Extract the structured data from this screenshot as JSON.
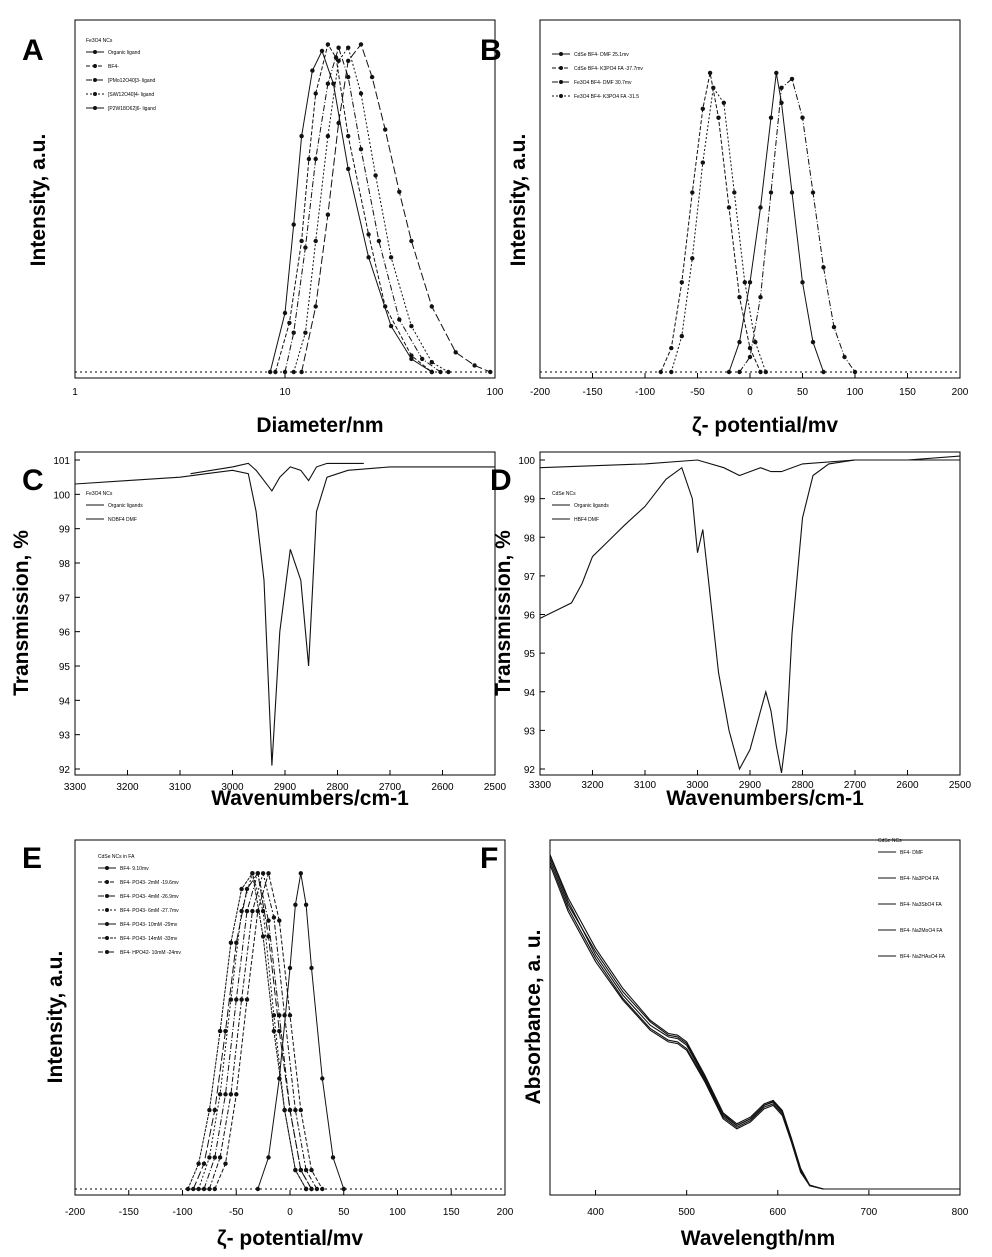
{
  "chart_data": [
    {
      "panel": "A",
      "type": "line",
      "xscale": "log",
      "xlim": [
        1,
        100
      ],
      "xticks": [
        "1",
        "10",
        "100"
      ],
      "xlabel": "Diameter/nm",
      "ylabel": "Intensity, a.u.",
      "legend_title": "Fe3O4 NCs",
      "legend": [
        "Organic ligand",
        "BF4-",
        "[PMo12O40]3- ligand",
        "[SiW12O40]4- ligand",
        "[P2W18O62]6- ligand"
      ],
      "series": [
        {
          "name": "Organic ligand",
          "x": [
            8.5,
            10,
            11,
            12,
            13.5,
            15,
            17,
            20,
            25,
            32,
            40,
            50
          ],
          "y": [
            0,
            0.18,
            0.45,
            0.72,
            0.92,
            0.98,
            0.88,
            0.62,
            0.35,
            0.14,
            0.04,
            0
          ]
        },
        {
          "name": "BF4-",
          "x": [
            9,
            10.5,
            12,
            13,
            14,
            16,
            17.5,
            20,
            25,
            30,
            40,
            50
          ],
          "y": [
            0,
            0.15,
            0.4,
            0.65,
            0.85,
            1.0,
            0.96,
            0.72,
            0.42,
            0.2,
            0.05,
            0
          ]
        },
        {
          "name": "[PMo12O40]3- ligand",
          "x": [
            10,
            11,
            12.5,
            14,
            16,
            18,
            20,
            23,
            28,
            35,
            45,
            55
          ],
          "y": [
            0,
            0.12,
            0.38,
            0.65,
            0.88,
            0.99,
            0.9,
            0.68,
            0.4,
            0.16,
            0.04,
            0
          ]
        },
        {
          "name": "[SiW12O40]4- ligand",
          "x": [
            11,
            12.5,
            14,
            16,
            18,
            20,
            23,
            27,
            32,
            40,
            50,
            60
          ],
          "y": [
            0,
            0.12,
            0.4,
            0.72,
            0.95,
            0.99,
            0.85,
            0.6,
            0.35,
            0.14,
            0.03,
            0
          ]
        },
        {
          "name": "[P2W18O62]6- ligand",
          "x": [
            12,
            14,
            16,
            18,
            20,
            23,
            26,
            30,
            35,
            40,
            50,
            65,
            80,
            95
          ],
          "y": [
            0,
            0.2,
            0.48,
            0.76,
            0.95,
            1.0,
            0.9,
            0.74,
            0.55,
            0.4,
            0.2,
            0.06,
            0.02,
            0
          ]
        }
      ]
    },
    {
      "panel": "B",
      "type": "line",
      "xlim": [
        -200,
        200
      ],
      "xticks": [
        "-200",
        "-150",
        "-100",
        "-50",
        "0",
        "50",
        "100",
        "150",
        "200"
      ],
      "xlabel": "ζ- potential/mv",
      "ylabel": "Intensity, a.u.",
      "legend": [
        "CdSe BF4- DMF 25.1mv",
        "CdSe BF4- K3PO4 FA -37.7mv",
        "Fe3O4 BF4- DMF 30.7mv",
        "Fe3O4 BF4- K3PO4 FA -31.5"
      ],
      "series": [
        {
          "name": "CdSe BF4- DMF 25.1mv",
          "x": [
            -20,
            -10,
            0,
            10,
            20,
            25,
            30,
            40,
            50,
            60,
            70
          ],
          "y": [
            0,
            0.1,
            0.3,
            0.55,
            0.85,
            1.0,
            0.9,
            0.6,
            0.3,
            0.1,
            0
          ]
        },
        {
          "name": "CdSe BF4- K3PO4 FA -37.7mv",
          "x": [
            -85,
            -75,
            -65,
            -55,
            -45,
            -38,
            -30,
            -20,
            -10,
            0,
            10
          ],
          "y": [
            0,
            0.08,
            0.3,
            0.6,
            0.88,
            1.0,
            0.85,
            0.55,
            0.25,
            0.08,
            0
          ]
        },
        {
          "name": "Fe3O4 BF4- DMF 30.7mv",
          "x": [
            -10,
            0,
            10,
            20,
            30,
            40,
            50,
            60,
            70,
            80,
            90,
            100
          ],
          "y": [
            0,
            0.05,
            0.25,
            0.6,
            0.95,
            0.98,
            0.85,
            0.6,
            0.35,
            0.15,
            0.05,
            0
          ]
        },
        {
          "name": "Fe3O4 BF4- K3PO4 FA -31.5",
          "x": [
            -75,
            -65,
            -55,
            -45,
            -35,
            -25,
            -15,
            -5,
            5,
            15
          ],
          "y": [
            0,
            0.12,
            0.38,
            0.7,
            0.95,
            0.9,
            0.6,
            0.3,
            0.1,
            0
          ]
        }
      ]
    },
    {
      "panel": "C",
      "type": "line",
      "xlim": [
        3300,
        2500
      ],
      "ylim": [
        92,
        101
      ],
      "xticks": [
        "3300",
        "3200",
        "3100",
        "3000",
        "2900",
        "2800",
        "2700",
        "2600",
        "2500"
      ],
      "yticks": [
        "92",
        "93",
        "94",
        "95",
        "96",
        "97",
        "98",
        "99",
        "100",
        "101"
      ],
      "xlabel": "Wavenumbers/cm-1",
      "ylabel": "Transmission, %",
      "legend_title": "Fe3O4 NCs",
      "legend": [
        "Organic ligands",
        "NOBF4 DMF"
      ],
      "series": [
        {
          "name": "Organic ligands",
          "x": [
            3300,
            3200,
            3100,
            3050,
            3000,
            2970,
            2955,
            2940,
            2925,
            2910,
            2890,
            2870,
            2855,
            2840,
            2820,
            2780,
            2700,
            2600,
            2500
          ],
          "y": [
            100.3,
            100.4,
            100.5,
            100.6,
            100.7,
            100.6,
            99.5,
            97.5,
            92.1,
            96.0,
            98.4,
            97.5,
            95.0,
            99.5,
            100.5,
            100.7,
            100.8,
            100.8,
            100.8
          ]
        },
        {
          "name": "NOBF4 DMF",
          "x": [
            3080,
            3000,
            2970,
            2955,
            2940,
            2925,
            2910,
            2890,
            2870,
            2855,
            2840,
            2820,
            2780,
            2750
          ],
          "y": [
            100.6,
            100.8,
            100.9,
            100.7,
            100.4,
            100.1,
            100.5,
            100.8,
            100.7,
            100.4,
            100.8,
            100.9,
            100.9,
            100.9
          ]
        }
      ]
    },
    {
      "panel": "D",
      "type": "line",
      "xlim": [
        3300,
        2500
      ],
      "ylim": [
        92,
        100
      ],
      "xticks": [
        "3300",
        "3200",
        "3100",
        "3000",
        "2900",
        "2800",
        "2700",
        "2600",
        "2500"
      ],
      "yticks": [
        "92",
        "93",
        "94",
        "95",
        "96",
        "97",
        "98",
        "99",
        "100"
      ],
      "xlabel": "Wavenumbers/cm-1",
      "ylabel": "Transmission, %",
      "legend_title": "CdSe NCs",
      "legend": [
        "Organic ligands",
        "HBF4 DMF"
      ],
      "series": [
        {
          "name": "Organic ligands",
          "x": [
            3300,
            3270,
            3240,
            3220,
            3200,
            3170,
            3140,
            3100,
            3060,
            3030,
            3010,
            3000,
            2990,
            2980,
            2960,
            2940,
            2920,
            2900,
            2880,
            2870,
            2860,
            2850,
            2840,
            2830,
            2820,
            2800,
            2780,
            2750,
            2700,
            2600,
            2500
          ],
          "y": [
            95.9,
            96.1,
            96.3,
            96.8,
            97.5,
            97.9,
            98.3,
            98.8,
            99.5,
            99.8,
            99.0,
            97.6,
            98.2,
            97.0,
            94.5,
            93.0,
            92.0,
            92.5,
            93.5,
            94.0,
            93.5,
            92.6,
            91.9,
            93.0,
            95.5,
            98.5,
            99.6,
            99.9,
            100.0,
            100.0,
            100.1
          ]
        },
        {
          "name": "HBF4 DMF",
          "x": [
            3300,
            3100,
            3000,
            2950,
            2920,
            2900,
            2880,
            2860,
            2840,
            2800,
            2700,
            2600,
            2500
          ],
          "y": [
            99.8,
            99.9,
            100.0,
            99.8,
            99.6,
            99.7,
            99.8,
            99.7,
            99.7,
            99.9,
            100.0,
            100.0,
            100.0
          ]
        }
      ]
    },
    {
      "panel": "E",
      "type": "line",
      "xlim": [
        -200,
        200
      ],
      "xticks": [
        "-200",
        "-150",
        "-100",
        "-50",
        "0",
        "50",
        "100",
        "150",
        "200"
      ],
      "xlabel": "ζ- potential/mv",
      "ylabel": "Intensity, a.u.",
      "legend_title": "CdSe NCs in FA",
      "legend": [
        "BF4- 9.10mv",
        "BF4- PO43- 2mM -19.6mv",
        "BF4- PO43- 4mM -26.9mv",
        "BF4- PO43- 6mM -27.7mv",
        "BF4- PO43- 10mM -29mv",
        "BF4- PO43- 14mM -33mv",
        "BF4- HPO42- 10mM -24mv"
      ],
      "series": [
        {
          "name": "BF4- 9.10mv",
          "x": [
            -30,
            -20,
            -10,
            0,
            5,
            10,
            15,
            20,
            30,
            40,
            50
          ],
          "y": [
            0,
            0.1,
            0.35,
            0.7,
            0.9,
            1.0,
            0.9,
            0.7,
            0.35,
            0.1,
            0
          ]
        },
        {
          "name": "BF4- PO43- 2mM -19.6mv",
          "x": [
            -70,
            -60,
            -50,
            -40,
            -30,
            -20,
            -10,
            0,
            10,
            20,
            30
          ],
          "y": [
            0,
            0.08,
            0.3,
            0.6,
            0.88,
            1.0,
            0.85,
            0.55,
            0.25,
            0.06,
            0
          ]
        },
        {
          "name": "BF4- PO43- 4mM -26.9mv",
          "x": [
            -80,
            -70,
            -60,
            -50,
            -40,
            -30,
            -20,
            -10,
            0,
            10,
            20
          ],
          "y": [
            0,
            0.1,
            0.3,
            0.6,
            0.88,
            1.0,
            0.85,
            0.55,
            0.25,
            0.06,
            0
          ]
        },
        {
          "name": "BF4- PO43- 6mM -27.7mv",
          "x": [
            -85,
            -75,
            -65,
            -55,
            -45,
            -35,
            -25,
            -15,
            -5,
            5,
            15
          ],
          "y": [
            0,
            0.1,
            0.3,
            0.6,
            0.88,
            1.0,
            0.88,
            0.55,
            0.25,
            0.06,
            0
          ]
        },
        {
          "name": "BF4- PO43- 10mM -29mv",
          "x": [
            -90,
            -80,
            -70,
            -60,
            -50,
            -40,
            -30,
            -20,
            -10,
            0,
            10,
            20
          ],
          "y": [
            0,
            0.08,
            0.25,
            0.5,
            0.78,
            0.95,
            1.0,
            0.8,
            0.5,
            0.25,
            0.06,
            0
          ]
        },
        {
          "name": "BF4- PO43- 14mM -33mv",
          "x": [
            -95,
            -85,
            -75,
            -65,
            -55,
            -45,
            -35,
            -25,
            -15,
            -5,
            5,
            15
          ],
          "y": [
            0,
            0.08,
            0.25,
            0.5,
            0.78,
            0.95,
            1.0,
            0.8,
            0.5,
            0.25,
            0.06,
            0
          ]
        },
        {
          "name": "BF4- HPO42- 10mM -24mv",
          "x": [
            -75,
            -65,
            -55,
            -45,
            -35,
            -25,
            -15,
            -5,
            5,
            15,
            25
          ],
          "y": [
            0,
            0.1,
            0.3,
            0.6,
            0.88,
            1.0,
            0.86,
            0.55,
            0.25,
            0.06,
            0
          ]
        }
      ]
    },
    {
      "panel": "F",
      "type": "line",
      "xlim": [
        350,
        800
      ],
      "xticks": [
        "400",
        "500",
        "600",
        "700",
        "800"
      ],
      "xlabel": "Wavelength/nm",
      "ylabel": "Absorbance, a. u.",
      "legend_title": "CdSe NCs",
      "legend": [
        "BF4- DMF",
        "BF4- Na3PO4 FA",
        "BF4- Na3SbO4 FA",
        "BF4- Na2MoO4 FA",
        "BF4- Na2HAsO4 FA"
      ],
      "series": [
        {
          "name": "BF4- DMF",
          "x": [
            350,
            370,
            400,
            430,
            460,
            480,
            490,
            500,
            520,
            540,
            555,
            570,
            585,
            595,
            605,
            615,
            625,
            635,
            650,
            700,
            800
          ],
          "y": [
            1.0,
            0.86,
            0.7,
            0.58,
            0.49,
            0.455,
            0.45,
            0.43,
            0.33,
            0.22,
            0.19,
            0.21,
            0.25,
            0.26,
            0.23,
            0.15,
            0.06,
            0.01,
            0.0,
            0.0,
            0.0
          ]
        },
        {
          "name": "BF4- Na3PO4 FA",
          "x": [
            350,
            370,
            400,
            430,
            460,
            480,
            490,
            500,
            520,
            540,
            555,
            570,
            585,
            595,
            605,
            615,
            625,
            635,
            650,
            700,
            800
          ],
          "y": [
            0.98,
            0.84,
            0.69,
            0.57,
            0.48,
            0.445,
            0.44,
            0.42,
            0.325,
            0.215,
            0.185,
            0.205,
            0.245,
            0.255,
            0.225,
            0.145,
            0.055,
            0.01,
            0.0,
            0.0,
            0.0
          ]
        },
        {
          "name": "BF4- Na3SbO4 FA",
          "x": [
            350,
            370,
            400,
            430,
            460,
            480,
            490,
            500,
            520,
            540,
            555,
            570,
            585,
            595,
            605,
            615,
            625,
            635,
            650,
            700,
            800
          ],
          "y": [
            0.99,
            0.85,
            0.71,
            0.59,
            0.5,
            0.46,
            0.455,
            0.435,
            0.335,
            0.225,
            0.19,
            0.21,
            0.25,
            0.262,
            0.232,
            0.15,
            0.06,
            0.01,
            0.0,
            0.0,
            0.0
          ]
        },
        {
          "name": "BF4- Na2MoO4 FA",
          "x": [
            350,
            370,
            400,
            430,
            460,
            480,
            490,
            500,
            520,
            540,
            555,
            570,
            585,
            595,
            605,
            615,
            625,
            635,
            650,
            700,
            800
          ],
          "y": [
            0.97,
            0.83,
            0.68,
            0.565,
            0.475,
            0.44,
            0.435,
            0.415,
            0.32,
            0.21,
            0.18,
            0.2,
            0.24,
            0.25,
            0.22,
            0.14,
            0.05,
            0.01,
            0.0,
            0.0,
            0.0
          ]
        },
        {
          "name": "BF4- Na2HAsO4 FA",
          "x": [
            350,
            370,
            400,
            430,
            460,
            480,
            490,
            500,
            520,
            540,
            555,
            570,
            585,
            595,
            605,
            615,
            625,
            635,
            650,
            700,
            800
          ],
          "y": [
            1.0,
            0.87,
            0.72,
            0.6,
            0.505,
            0.465,
            0.46,
            0.44,
            0.34,
            0.228,
            0.195,
            0.215,
            0.255,
            0.265,
            0.235,
            0.152,
            0.062,
            0.012,
            0.0,
            0.0,
            0.0
          ]
        }
      ]
    }
  ]
}
